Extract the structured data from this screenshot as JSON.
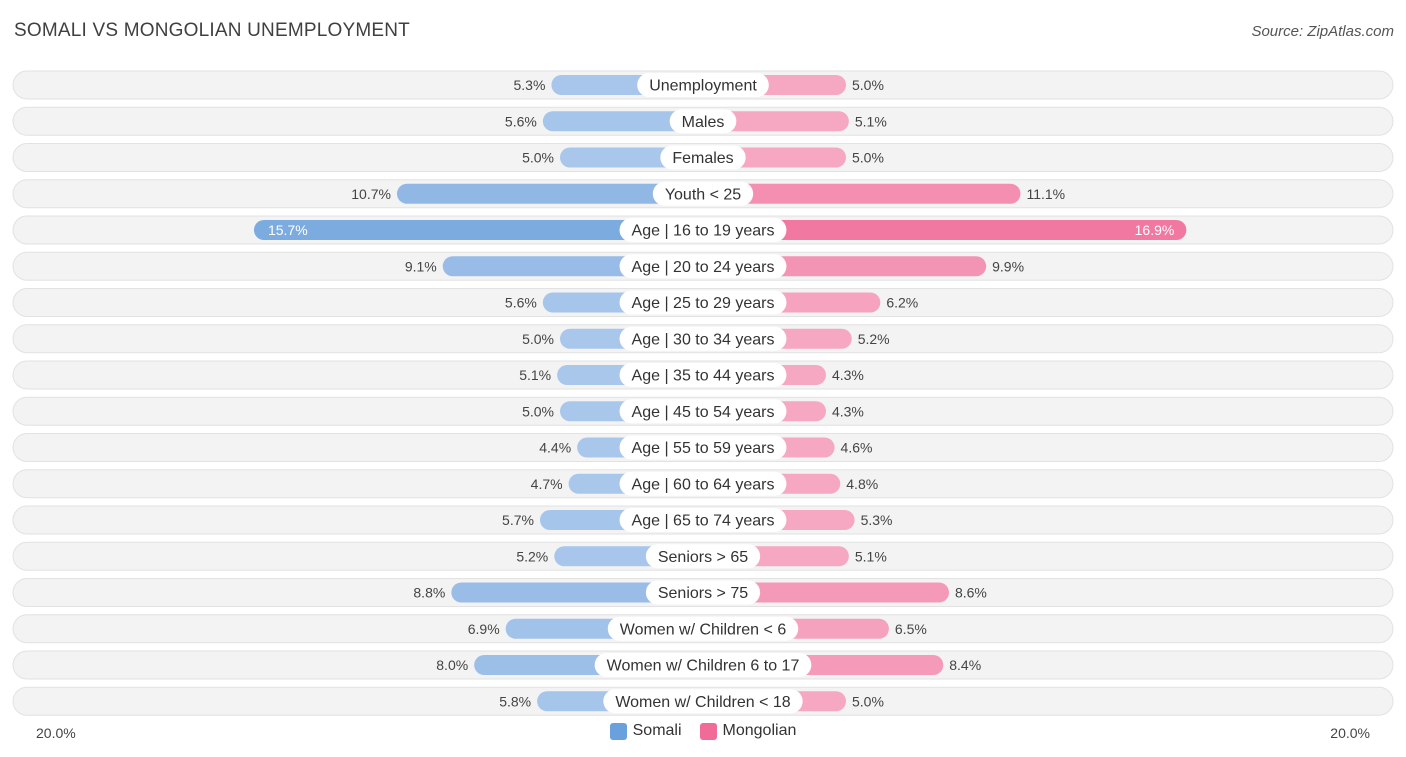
{
  "header": {
    "title": "SOMALI VS MONGOLIAN UNEMPLOYMENT",
    "source": "Source: ZipAtlas.com"
  },
  "colors": {
    "somali": "#6aa0dc",
    "somali_light": "#a9c7eb",
    "mongolian": "#f06b97",
    "mongolian_light": "#f6a8c2"
  },
  "chart_data": {
    "type": "bar",
    "orientation": "diverging-horizontal",
    "title": "SOMALI VS MONGOLIAN UNEMPLOYMENT",
    "categories": [
      "Unemployment",
      "Males",
      "Females",
      "Youth < 25",
      "Age | 16 to 19 years",
      "Age | 20 to 24 years",
      "Age | 25 to 29 years",
      "Age | 30 to 34 years",
      "Age | 35 to 44 years",
      "Age | 45 to 54 years",
      "Age | 55 to 59 years",
      "Age | 60 to 64 years",
      "Age | 65 to 74 years",
      "Seniors > 65",
      "Seniors > 75",
      "Women w/ Children < 6",
      "Women w/ Children 6 to 17",
      "Women w/ Children < 18"
    ],
    "series": [
      {
        "name": "Somali",
        "values": [
          5.3,
          5.6,
          5.0,
          10.7,
          15.7,
          9.1,
          5.6,
          5.0,
          5.1,
          5.0,
          4.4,
          4.7,
          5.7,
          5.2,
          8.8,
          6.9,
          8.0,
          5.8
        ],
        "labels": [
          "5.3%",
          "5.6%",
          "5.0%",
          "10.7%",
          "15.7%",
          "9.1%",
          "5.6%",
          "5.0%",
          "5.1%",
          "5.0%",
          "4.4%",
          "4.7%",
          "5.7%",
          "5.2%",
          "8.8%",
          "6.9%",
          "8.0%",
          "5.8%"
        ]
      },
      {
        "name": "Mongolian",
        "values": [
          5.0,
          5.1,
          5.0,
          11.1,
          16.9,
          9.9,
          6.2,
          5.2,
          4.3,
          4.3,
          4.6,
          4.8,
          5.3,
          5.1,
          8.6,
          6.5,
          8.4,
          5.0
        ],
        "labels": [
          "5.0%",
          "5.1%",
          "5.0%",
          "11.1%",
          "16.9%",
          "9.9%",
          "6.2%",
          "5.2%",
          "4.3%",
          "4.3%",
          "4.6%",
          "4.8%",
          "5.3%",
          "5.1%",
          "8.6%",
          "6.5%",
          "8.4%",
          "5.0%"
        ]
      }
    ],
    "xlim": [
      0,
      20
    ],
    "axis_left_label": "20.0%",
    "axis_right_label": "20.0%",
    "legend_position": "bottom-center"
  }
}
